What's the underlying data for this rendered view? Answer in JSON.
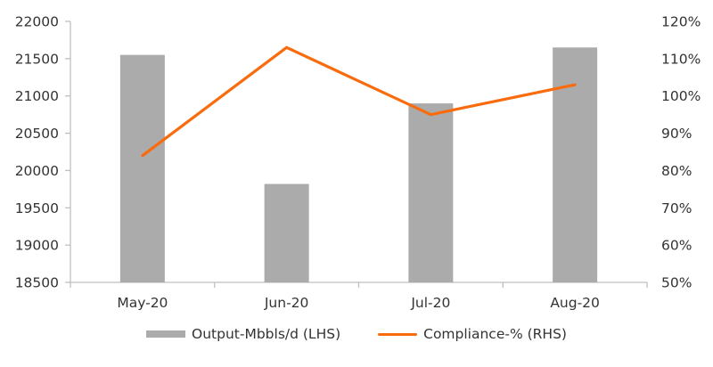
{
  "chart_data": {
    "type": "bar",
    "subtype": "bar-line-combo",
    "categories": [
      "May-20",
      "Jun-20",
      "Jul-20",
      "Aug-20"
    ],
    "series": [
      {
        "name": "Output-Mbbls/d (LHS)",
        "type": "bar",
        "axis": "left",
        "color": "#ABABAB",
        "values": [
          21550,
          19820,
          20900,
          21650
        ]
      },
      {
        "name": "Compliance-% (RHS)",
        "type": "line",
        "axis": "right",
        "color": "#F96B0D",
        "values": [
          84,
          113,
          95,
          103
        ]
      }
    ],
    "left_axis": {
      "min": 18500,
      "max": 22000,
      "step": 500,
      "tick_labels": [
        "22000",
        "21500",
        "21000",
        "20500",
        "20000",
        "19500",
        "19000",
        "18500"
      ]
    },
    "right_axis": {
      "min": 50,
      "max": 120,
      "step": 10,
      "tick_labels": [
        "120%",
        "110%",
        "100%",
        "90%",
        "80%",
        "70%",
        "60%",
        "50%"
      ]
    },
    "grid": false,
    "legend_position": "bottom"
  },
  "style": {
    "axis_color": "#BFBFBF",
    "text_color": "#333333",
    "background": "#FFFFFF"
  }
}
